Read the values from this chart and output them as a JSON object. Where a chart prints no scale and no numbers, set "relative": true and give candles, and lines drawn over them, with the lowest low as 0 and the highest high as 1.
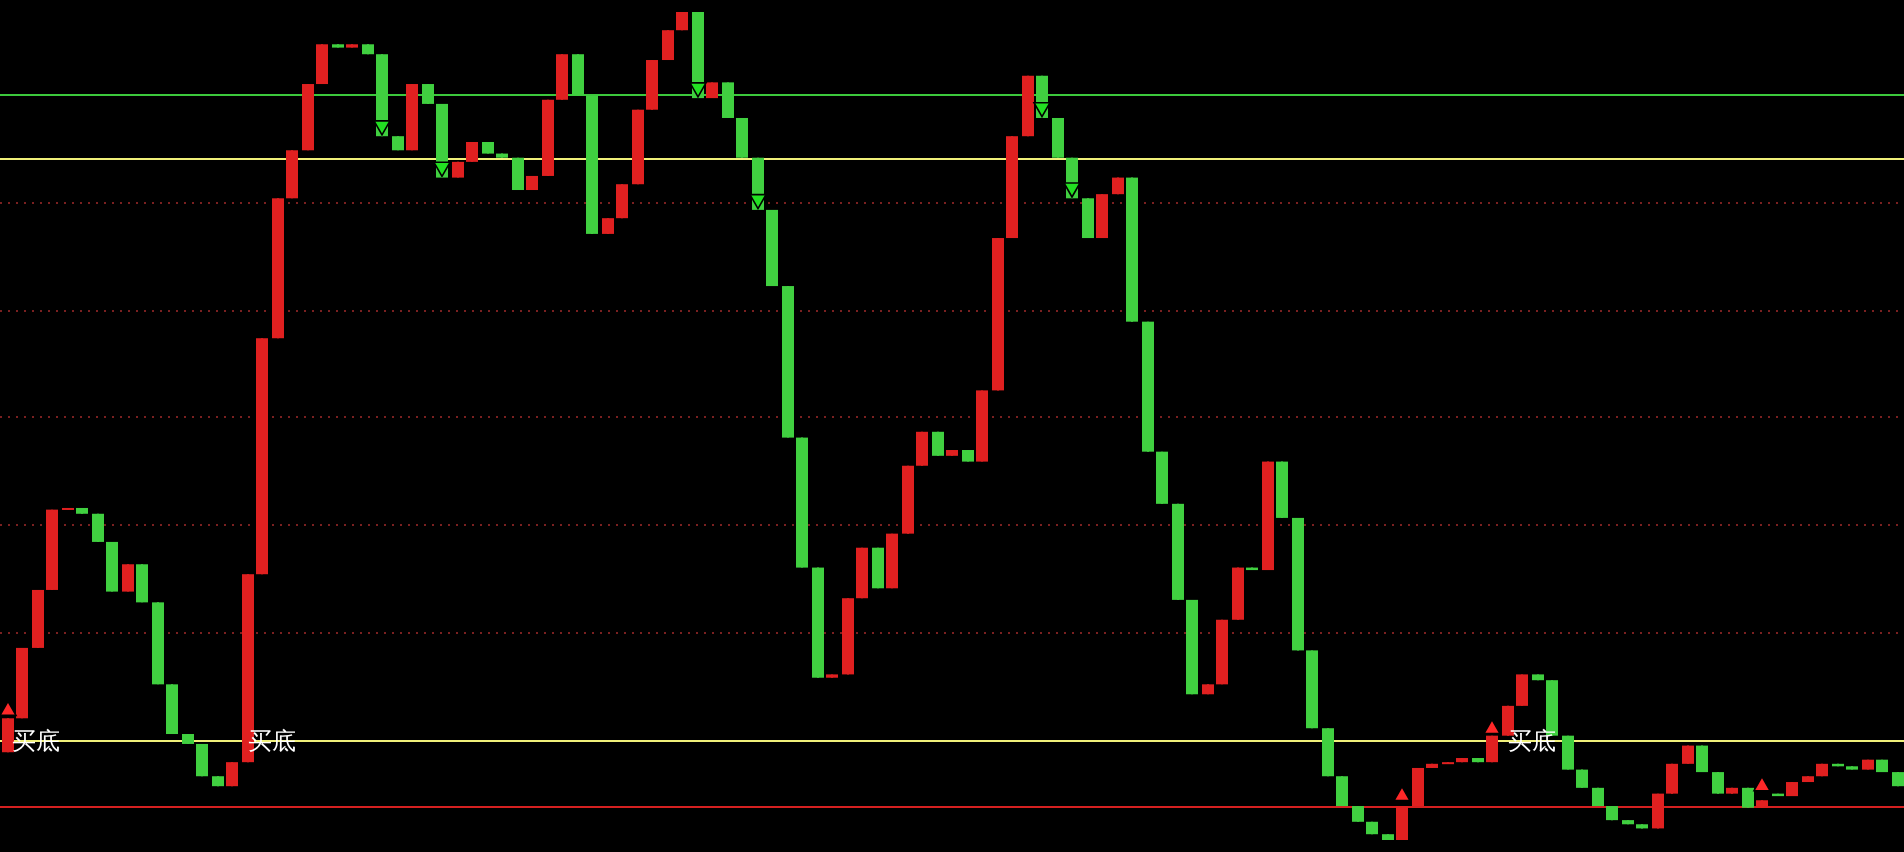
{
  "chart_data": {
    "type": "candlestick",
    "relative": true,
    "categories": [
      null,
      null,
      null,
      null,
      null,
      null,
      null,
      null,
      null,
      null,
      null,
      null,
      null,
      null,
      null,
      null,
      null,
      null,
      null,
      null,
      null,
      null,
      null,
      null,
      null,
      null,
      null,
      null,
      null,
      null,
      null,
      null,
      null,
      null,
      null,
      null,
      null,
      null,
      null,
      null,
      null,
      null,
      null,
      null,
      null,
      null,
      null,
      null,
      null,
      null,
      null,
      null,
      null,
      null,
      null,
      null,
      null,
      null,
      null,
      null,
      null,
      null,
      null,
      null,
      null,
      null,
      null,
      null,
      null,
      null,
      null,
      null,
      null,
      null,
      null,
      null,
      null,
      null,
      null,
      null,
      null,
      null,
      null,
      null,
      null,
      null,
      null,
      null,
      null,
      null,
      null,
      null,
      null,
      null,
      null,
      null,
      null,
      null,
      null,
      null,
      null,
      null,
      null,
      null,
      null,
      null,
      null,
      null,
      null,
      null,
      null,
      null,
      null,
      null,
      null,
      null,
      null,
      null,
      null,
      null,
      null,
      null,
      null,
      null,
      null,
      null,
      null
    ],
    "ohlc": [
      [
        0.106,
        0.147,
        0.106,
        0.147
      ],
      [
        0.147,
        0.232,
        0.147,
        0.232
      ],
      [
        0.232,
        0.302,
        0.232,
        0.302
      ],
      [
        0.302,
        0.399,
        0.302,
        0.399
      ],
      [
        0.399,
        0.401,
        0.399,
        0.401
      ],
      [
        0.401,
        0.401,
        0.394,
        0.394
      ],
      [
        0.394,
        0.394,
        0.36,
        0.36
      ],
      [
        0.36,
        0.36,
        0.3,
        0.3
      ],
      [
        0.3,
        0.333,
        0.3,
        0.333
      ],
      [
        0.333,
        0.333,
        0.287,
        0.287
      ],
      [
        0.287,
        0.287,
        0.188,
        0.188
      ],
      [
        0.188,
        0.188,
        0.128,
        0.128
      ],
      [
        0.128,
        0.128,
        0.116,
        0.116
      ],
      [
        0.116,
        0.116,
        0.077,
        0.077
      ],
      [
        0.077,
        0.077,
        0.065,
        0.065
      ],
      [
        0.065,
        0.094,
        0.065,
        0.094
      ],
      [
        0.094,
        0.321,
        0.094,
        0.321
      ],
      [
        0.321,
        0.606,
        0.321,
        0.606
      ],
      [
        0.606,
        0.775,
        0.606,
        0.775
      ],
      [
        0.775,
        0.833,
        0.775,
        0.833
      ],
      [
        0.833,
        0.913,
        0.833,
        0.913
      ],
      [
        0.913,
        0.961,
        0.913,
        0.961
      ],
      [
        0.961,
        0.961,
        0.957,
        0.957
      ],
      [
        0.957,
        0.961,
        0.957,
        0.961
      ],
      [
        0.961,
        0.961,
        0.949,
        0.949
      ],
      [
        0.949,
        0.949,
        0.85,
        0.85
      ],
      [
        0.85,
        0.85,
        0.833,
        0.833
      ],
      [
        0.833,
        0.913,
        0.833,
        0.913
      ],
      [
        0.913,
        0.913,
        0.889,
        0.889
      ],
      [
        0.889,
        0.889,
        0.8,
        0.8
      ],
      [
        0.8,
        0.819,
        0.8,
        0.819
      ],
      [
        0.819,
        0.843,
        0.819,
        0.843
      ],
      [
        0.843,
        0.843,
        0.829,
        0.829
      ],
      [
        0.829,
        0.829,
        0.824,
        0.824
      ],
      [
        0.824,
        0.824,
        0.785,
        0.785
      ],
      [
        0.785,
        0.802,
        0.785,
        0.802
      ],
      [
        0.802,
        0.894,
        0.802,
        0.894
      ],
      [
        0.894,
        0.949,
        0.894,
        0.949
      ],
      [
        0.949,
        0.949,
        0.899,
        0.899
      ],
      [
        0.899,
        0.899,
        0.732,
        0.732
      ],
      [
        0.732,
        0.751,
        0.732,
        0.751
      ],
      [
        0.751,
        0.792,
        0.751,
        0.792
      ],
      [
        0.792,
        0.882,
        0.792,
        0.882
      ],
      [
        0.882,
        0.942,
        0.882,
        0.942
      ],
      [
        0.942,
        0.978,
        0.942,
        0.978
      ],
      [
        0.978,
        1,
        0.978,
        1
      ],
      [
        1,
        1,
        0.896,
        0.896
      ],
      [
        0.896,
        0.915,
        0.896,
        0.915
      ],
      [
        0.915,
        0.915,
        0.872,
        0.872
      ],
      [
        0.872,
        0.872,
        0.824,
        0.824
      ],
      [
        0.824,
        0.824,
        0.761,
        0.761
      ],
      [
        0.761,
        0.761,
        0.669,
        0.669
      ],
      [
        0.669,
        0.669,
        0.486,
        0.486
      ],
      [
        0.486,
        0.486,
        0.329,
        0.329
      ],
      [
        0.329,
        0.329,
        0.196,
        0.196
      ],
      [
        0.196,
        0.2,
        0.196,
        0.2
      ],
      [
        0.2,
        0.292,
        0.2,
        0.292
      ],
      [
        0.292,
        0.353,
        0.292,
        0.353
      ],
      [
        0.353,
        0.353,
        0.304,
        0.304
      ],
      [
        0.304,
        0.37,
        0.304,
        0.37
      ],
      [
        0.37,
        0.452,
        0.37,
        0.452
      ],
      [
        0.452,
        0.493,
        0.452,
        0.493
      ],
      [
        0.493,
        0.493,
        0.464,
        0.464
      ],
      [
        0.464,
        0.471,
        0.464,
        0.471
      ],
      [
        0.471,
        0.471,
        0.457,
        0.457
      ],
      [
        0.457,
        0.543,
        0.457,
        0.543
      ],
      [
        0.543,
        0.727,
        0.543,
        0.727
      ],
      [
        0.727,
        0.85,
        0.727,
        0.85
      ],
      [
        0.85,
        0.923,
        0.85,
        0.923
      ],
      [
        0.923,
        0.923,
        0.872,
        0.872
      ],
      [
        0.872,
        0.872,
        0.824,
        0.824
      ],
      [
        0.824,
        0.824,
        0.775,
        0.775
      ],
      [
        0.775,
        0.775,
        0.727,
        0.727
      ],
      [
        0.727,
        0.78,
        0.727,
        0.78
      ],
      [
        0.78,
        0.8,
        0.78,
        0.8
      ],
      [
        0.8,
        0.8,
        0.626,
        0.626
      ],
      [
        0.626,
        0.626,
        0.469,
        0.469
      ],
      [
        0.469,
        0.469,
        0.406,
        0.406
      ],
      [
        0.406,
        0.406,
        0.29,
        0.29
      ],
      [
        0.29,
        0.29,
        0.176,
        0.176
      ],
      [
        0.176,
        0.188,
        0.176,
        0.188
      ],
      [
        0.188,
        0.266,
        0.188,
        0.266
      ],
      [
        0.266,
        0.329,
        0.266,
        0.329
      ],
      [
        0.329,
        0.329,
        0.326,
        0.326
      ],
      [
        0.326,
        0.457,
        0.326,
        0.457
      ],
      [
        0.457,
        0.457,
        0.389,
        0.389
      ],
      [
        0.389,
        0.389,
        0.229,
        0.229
      ],
      [
        0.229,
        0.229,
        0.135,
        0.135
      ],
      [
        0.135,
        0.135,
        0.077,
        0.077
      ],
      [
        0.077,
        0.077,
        0.041,
        0.041
      ],
      [
        0.041,
        0.041,
        0.022,
        0.022
      ],
      [
        0.022,
        0.022,
        0.007,
        0.007
      ],
      [
        0.007,
        0.007,
        0,
        0
      ],
      [
        0,
        0.041,
        0,
        0.041
      ],
      [
        0.041,
        0.087,
        0.041,
        0.087
      ],
      [
        0.087,
        0.092,
        0.087,
        0.092
      ],
      [
        0.092,
        0.094,
        0.092,
        0.094
      ],
      [
        0.094,
        0.099,
        0.094,
        0.099
      ],
      [
        0.099,
        0.099,
        0.094,
        0.094
      ],
      [
        0.094,
        0.126,
        0.094,
        0.126
      ],
      [
        0.126,
        0.162,
        0.126,
        0.162
      ],
      [
        0.162,
        0.2,
        0.162,
        0.2
      ],
      [
        0.2,
        0.2,
        0.193,
        0.193
      ],
      [
        0.193,
        0.193,
        0.126,
        0.126
      ],
      [
        0.126,
        0.126,
        0.085,
        0.085
      ],
      [
        0.085,
        0.085,
        0.063,
        0.063
      ],
      [
        0.063,
        0.063,
        0.041,
        0.041
      ],
      [
        0.041,
        0.041,
        0.024,
        0.024
      ],
      [
        0.024,
        0.024,
        0.019,
        0.019
      ],
      [
        0.019,
        0.019,
        0.014,
        0.014
      ],
      [
        0.014,
        0.056,
        0.014,
        0.056
      ],
      [
        0.056,
        0.092,
        0.056,
        0.092
      ],
      [
        0.092,
        0.114,
        0.092,
        0.114
      ],
      [
        0.114,
        0.114,
        0.082,
        0.082
      ],
      [
        0.082,
        0.082,
        0.056,
        0.056
      ],
      [
        0.056,
        0.063,
        0.056,
        0.063
      ],
      [
        0.063,
        0.063,
        0.039,
        0.039
      ],
      [
        0.039,
        0.048,
        0.039,
        0.048
      ],
      [
        0.056,
        0.056,
        0.053,
        0.053
      ],
      [
        0.053,
        0.07,
        0.053,
        0.07
      ],
      [
        0.07,
        0.077,
        0.07,
        0.077
      ],
      [
        0.077,
        0.092,
        0.077,
        0.092
      ],
      [
        0.092,
        0.092,
        0.089,
        0.089
      ],
      [
        0.089,
        0.089,
        0.085,
        0.085
      ],
      [
        0.085,
        0.097,
        0.085,
        0.097
      ],
      [
        0.097,
        0.097,
        0.082,
        0.082
      ],
      [
        0.082,
        0.082,
        0.065,
        0.065
      ]
    ],
    "colors": [
      "#e02020",
      "#e02020",
      "#e02020",
      "#e02020",
      "#e02020",
      "#40d040",
      "#40d040",
      "#40d040",
      "#e02020",
      "#40d040",
      "#40d040",
      "#40d040",
      "#40d040",
      "#40d040",
      "#40d040",
      "#e02020",
      "#e02020",
      "#e02020",
      "#e02020",
      "#e02020",
      "#e02020",
      "#e02020",
      "#40d040",
      "#e02020",
      "#40d040",
      "#40d040",
      "#40d040",
      "#e02020",
      "#40d040",
      "#40d040",
      "#e02020",
      "#e02020",
      "#40d040",
      "#40d040",
      "#40d040",
      "#e02020",
      "#e02020",
      "#e02020",
      "#40d040",
      "#40d040",
      "#e02020",
      "#e02020",
      "#e02020",
      "#e02020",
      "#e02020",
      "#e02020",
      "#40d040",
      "#e02020",
      "#40d040",
      "#40d040",
      "#40d040",
      "#40d040",
      "#40d040",
      "#40d040",
      "#40d040",
      "#e02020",
      "#e02020",
      "#e02020",
      "#40d040",
      "#e02020",
      "#e02020",
      "#e02020",
      "#40d040",
      "#e02020",
      "#40d040",
      "#e02020",
      "#e02020",
      "#e02020",
      "#e02020",
      "#40d040",
      "#40d040",
      "#40d040",
      "#40d040",
      "#e02020",
      "#e02020",
      "#40d040",
      "#40d040",
      "#40d040",
      "#40d040",
      "#40d040",
      "#e02020",
      "#e02020",
      "#e02020",
      "#40d040",
      "#e02020",
      "#40d040",
      "#40d040",
      "#40d040",
      "#40d040",
      "#40d040",
      "#40d040",
      "#40d040",
      "#40d040",
      "#e02020",
      "#e02020",
      "#e02020",
      "#e02020",
      "#e02020",
      "#40d040",
      "#e02020",
      "#e02020",
      "#e02020",
      "#40d040",
      "#40d040",
      "#40d040",
      "#40d040",
      "#40d040",
      "#40d040",
      "#40d040",
      "#40d040",
      "#e02020",
      "#e02020",
      "#e02020",
      "#40d040",
      "#40d040",
      "#e02020",
      "#40d040",
      "#e02020",
      "#40d040",
      "#e02020",
      "#e02020",
      "#e02020",
      "#40d040",
      "#40d040",
      "#e02020",
      "#40d040",
      "#40d040"
    ],
    "series": [
      {
        "type": "scatter",
        "color": "#ff2828",
        "marker": "triangle",
        "values": [
          0.159,
          null,
          null,
          null,
          null,
          null,
          null,
          null,
          null,
          null,
          null,
          null,
          null,
          null,
          null,
          null,
          null,
          null,
          null,
          null,
          null,
          null,
          null,
          null,
          null,
          null,
          null,
          null,
          null,
          null,
          null,
          null,
          null,
          null,
          null,
          null,
          null,
          null,
          null,
          null,
          null,
          null,
          null,
          null,
          null,
          null,
          null,
          null,
          null,
          null,
          null,
          null,
          null,
          null,
          null,
          null,
          null,
          null,
          null,
          null,
          null,
          null,
          null,
          null,
          null,
          null,
          null,
          null,
          null,
          null,
          null,
          null,
          null,
          null,
          null,
          null,
          null,
          null,
          null,
          null,
          null,
          null,
          null,
          null,
          null,
          null,
          null,
          null,
          null,
          null,
          null,
          null,
          null,
          0.056,
          null,
          null,
          null,
          null,
          null,
          0.137,
          null,
          null,
          null,
          null,
          null,
          null,
          null,
          null,
          null,
          null,
          null,
          null,
          null,
          null,
          null,
          null,
          null,
          0.068,
          null,
          null,
          null,
          null,
          null,
          null,
          null,
          null,
          null
        ]
      },
      {
        "type": "scatter",
        "color": "#22e022",
        "marker": "triangle-down",
        "values": [
          null,
          null,
          null,
          null,
          null,
          null,
          null,
          null,
          null,
          null,
          null,
          null,
          null,
          null,
          null,
          null,
          null,
          null,
          null,
          null,
          null,
          null,
          null,
          null,
          null,
          0.86,
          null,
          null,
          null,
          0.81,
          null,
          null,
          null,
          null,
          null,
          null,
          null,
          null,
          null,
          null,
          null,
          null,
          null,
          null,
          null,
          null,
          0.906,
          null,
          null,
          null,
          0.771,
          null,
          null,
          null,
          null,
          null,
          null,
          null,
          null,
          null,
          null,
          null,
          null,
          null,
          null,
          null,
          null,
          null,
          null,
          0.882,
          null,
          0.785,
          null,
          null,
          null,
          null,
          null,
          null,
          null,
          null,
          null,
          null,
          null,
          null,
          null,
          null,
          null,
          null,
          null,
          null,
          null,
          null,
          null,
          null,
          null,
          null,
          null,
          null,
          null,
          null,
          null,
          null,
          null,
          null,
          null,
          null,
          null,
          null,
          null,
          null,
          null,
          null,
          null,
          null,
          null,
          null,
          null,
          null,
          null,
          null,
          null,
          null,
          null,
          null,
          null,
          null,
          null
        ]
      }
    ],
    "annotations": [
      {
        "text": "买底",
        "y": 0.121
      },
      {
        "text": "买底",
        "y": 0.121
      },
      {
        "text": "买底",
        "y": 0.121
      }
    ],
    "ref_lines": [
      {
        "axis": "y",
        "value": 0.901,
        "color": "#3cc83c",
        "line_style": "solid"
      },
      {
        "axis": "y",
        "value": 0.824,
        "color": "#f0f07a",
        "line_style": "solid"
      },
      {
        "axis": "y",
        "value": 0.121,
        "color": "#f0f07a",
        "line_style": "solid"
      },
      {
        "axis": "y",
        "value": 0.041,
        "color": "#d42020",
        "line_style": "solid"
      },
      {
        "axis": "y",
        "value": 0.771,
        "color": "#7a2020",
        "line_style": "dotted"
      },
      {
        "axis": "y",
        "value": 0.641,
        "color": "#7a2020",
        "line_style": "dotted"
      },
      {
        "axis": "y",
        "value": 0.511,
        "color": "#7a2020",
        "line_style": "dotted"
      },
      {
        "axis": "y",
        "value": 0.382,
        "color": "#7a2020",
        "line_style": "dotted"
      },
      {
        "axis": "y",
        "value": 0.252,
        "color": "#7a2020",
        "line_style": "dotted"
      }
    ]
  }
}
